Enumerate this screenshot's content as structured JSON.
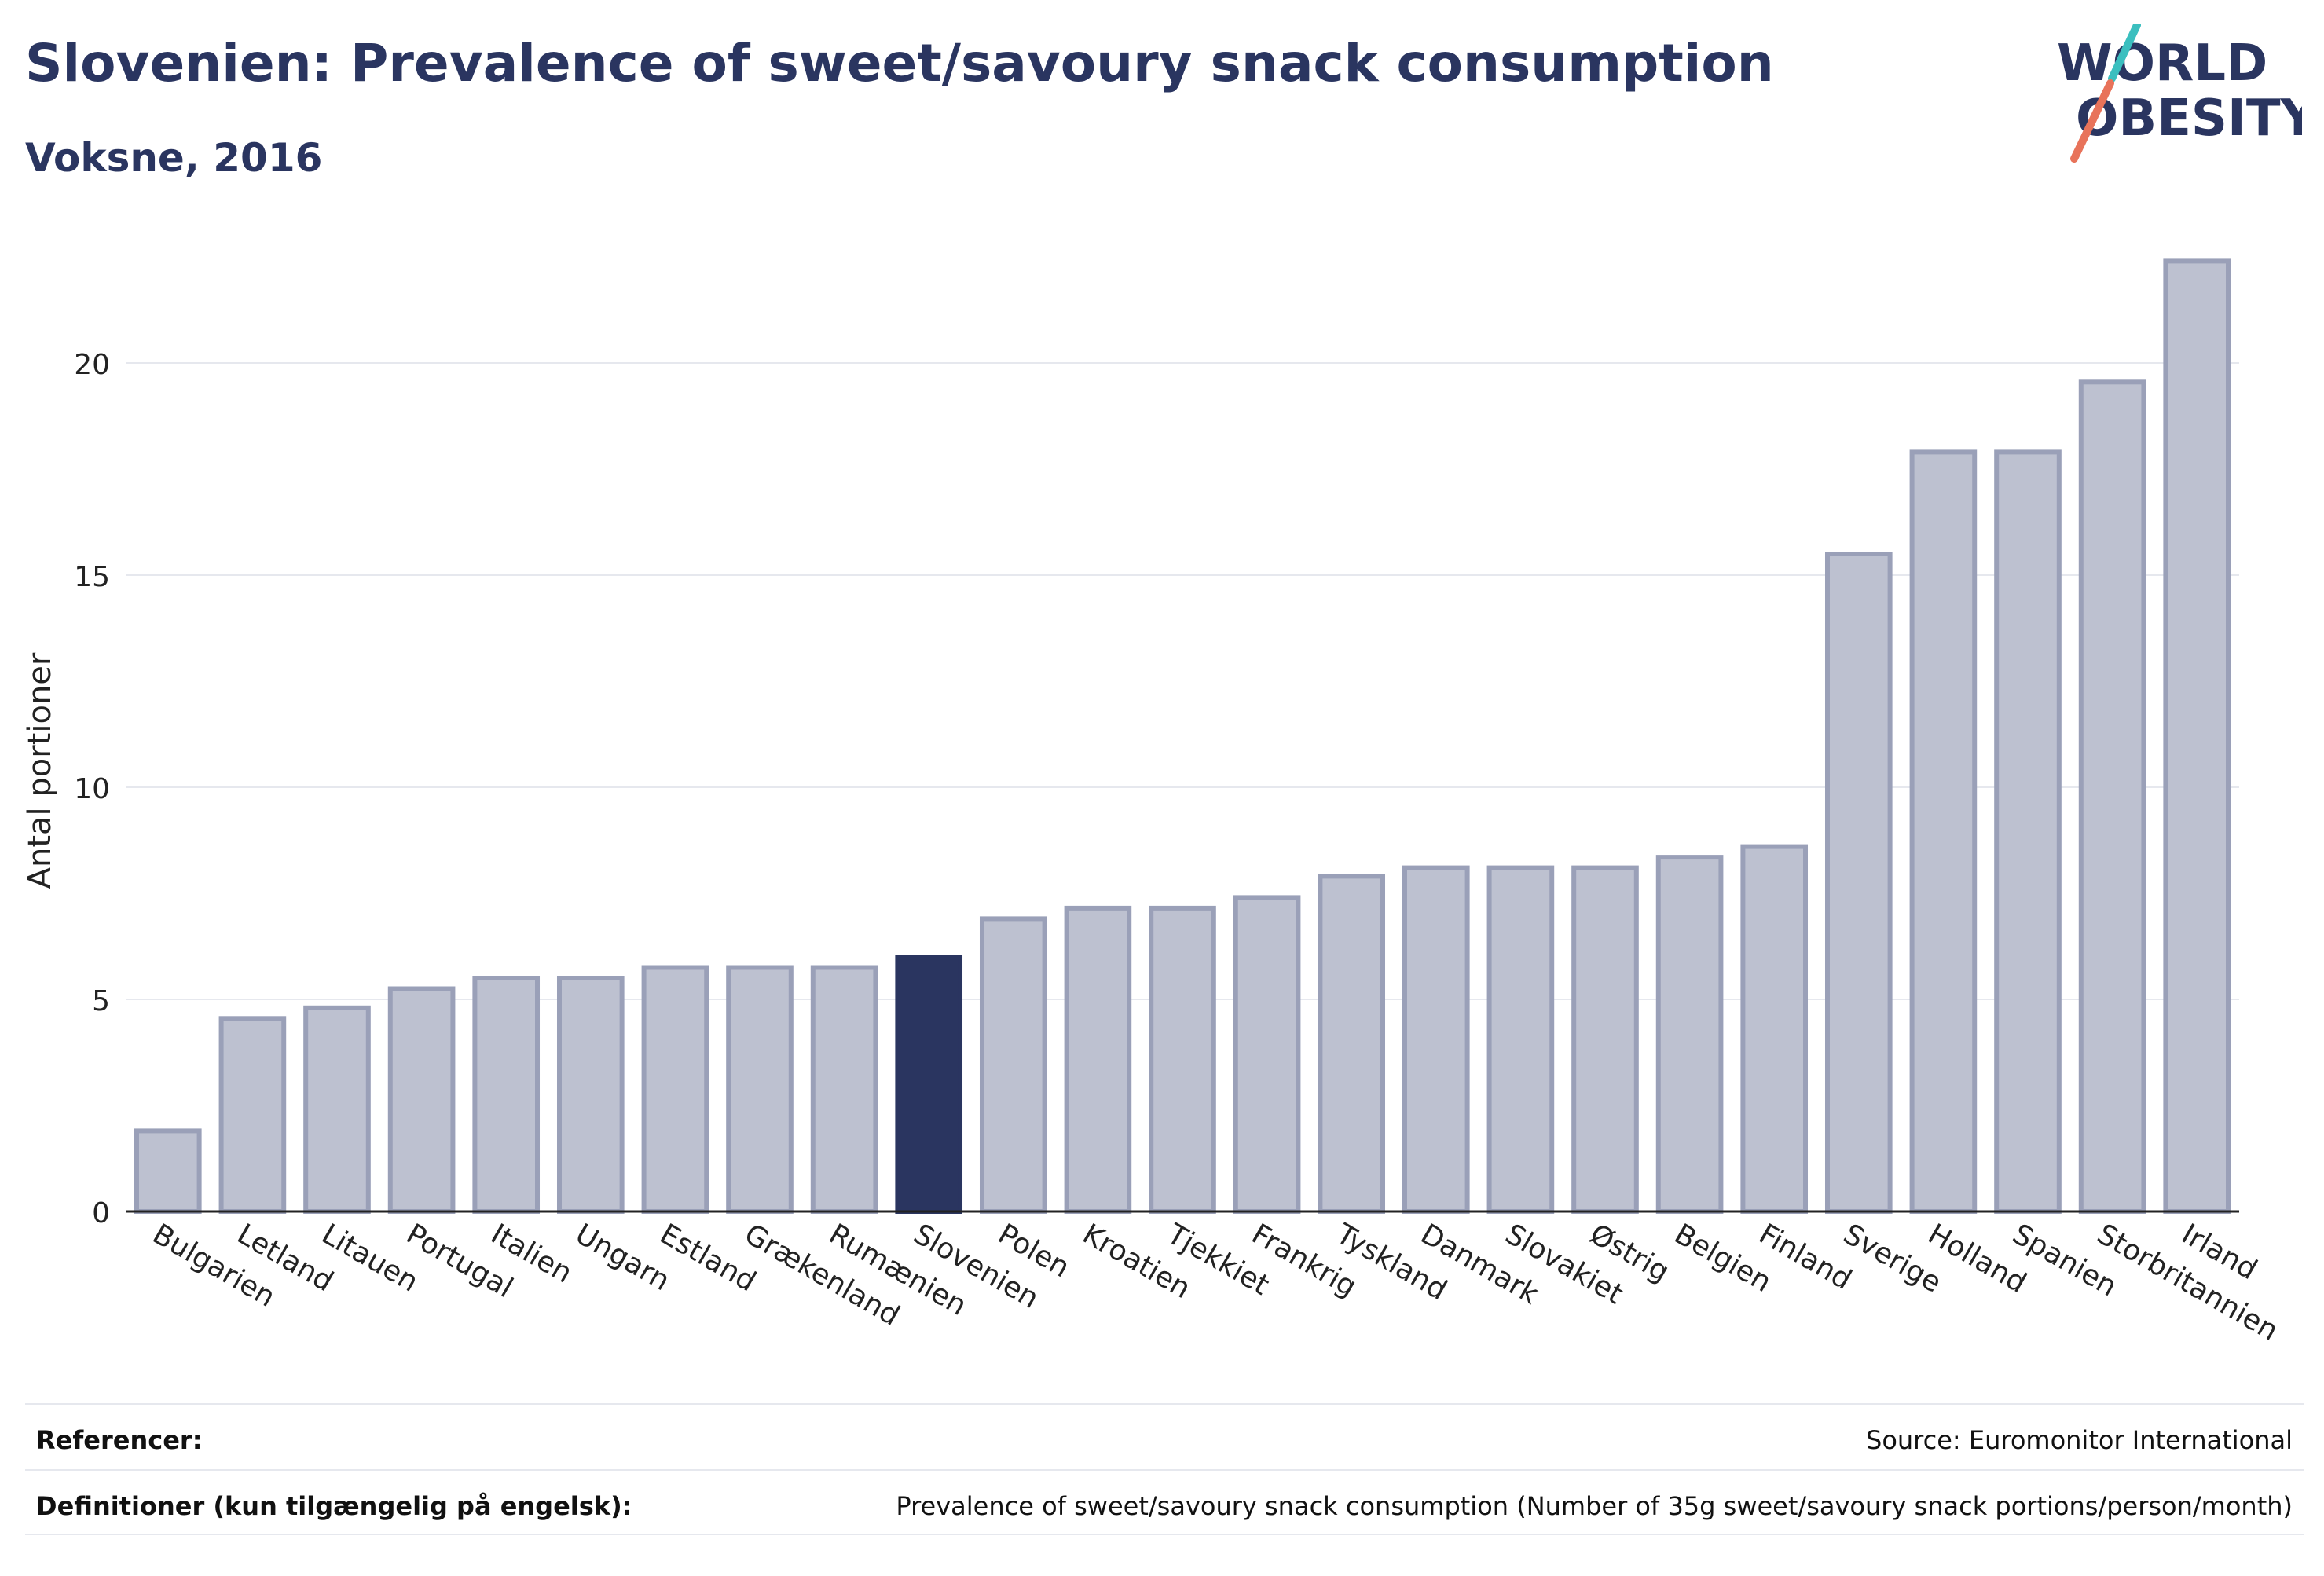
{
  "header": {
    "title": "Slovenien: Prevalence of sweet/savoury snack consumption",
    "subtitle": "Voksne, 2016"
  },
  "logo": {
    "line1": "WORLD",
    "line2": "OBESITY",
    "accent_teal": "#3bbfbf",
    "accent_coral": "#e8735a"
  },
  "colors": {
    "bar": "#bdc1d0",
    "bar_stroke": "#9aa0b8",
    "highlight": "#2a3560",
    "grid": "#e6e8ee",
    "axis": "#222222",
    "text": "#222222"
  },
  "chart_data": {
    "type": "bar",
    "ylabel": "Antal portioner",
    "ylim": [
      0,
      23
    ],
    "yticks": [
      0,
      5,
      10,
      15,
      20
    ],
    "grid": true,
    "highlight": "Slovenien",
    "categories": [
      "Bulgarien",
      "Letland",
      "Litauen",
      "Portugal",
      "Italien",
      "Ungarn",
      "Estland",
      "Grækenland",
      "Rumænien",
      "Slovenien",
      "Polen",
      "Kroatien",
      "Tjekkiet",
      "Frankrig",
      "Tyskland",
      "Danmark",
      "Slovakiet",
      "Østrig",
      "Belgien",
      "Finland",
      "Sverige",
      "Holland",
      "Spanien",
      "Storbritannien",
      "Irland"
    ],
    "values": [
      1.9,
      4.55,
      4.8,
      5.25,
      5.5,
      5.5,
      5.75,
      5.75,
      5.75,
      6.0,
      6.9,
      7.15,
      7.15,
      7.4,
      7.9,
      8.1,
      8.1,
      8.1,
      8.35,
      8.6,
      15.5,
      17.9,
      17.9,
      19.55,
      22.4
    ]
  },
  "footer": {
    "references_label": "Referencer:",
    "references_value": "Source: Euromonitor International",
    "definitions_label": "Definitioner (kun tilgængelig på engelsk):",
    "definitions_value": "Prevalence of sweet/savoury snack consumption (Number of 35g sweet/savoury snack portions/person/month)"
  }
}
